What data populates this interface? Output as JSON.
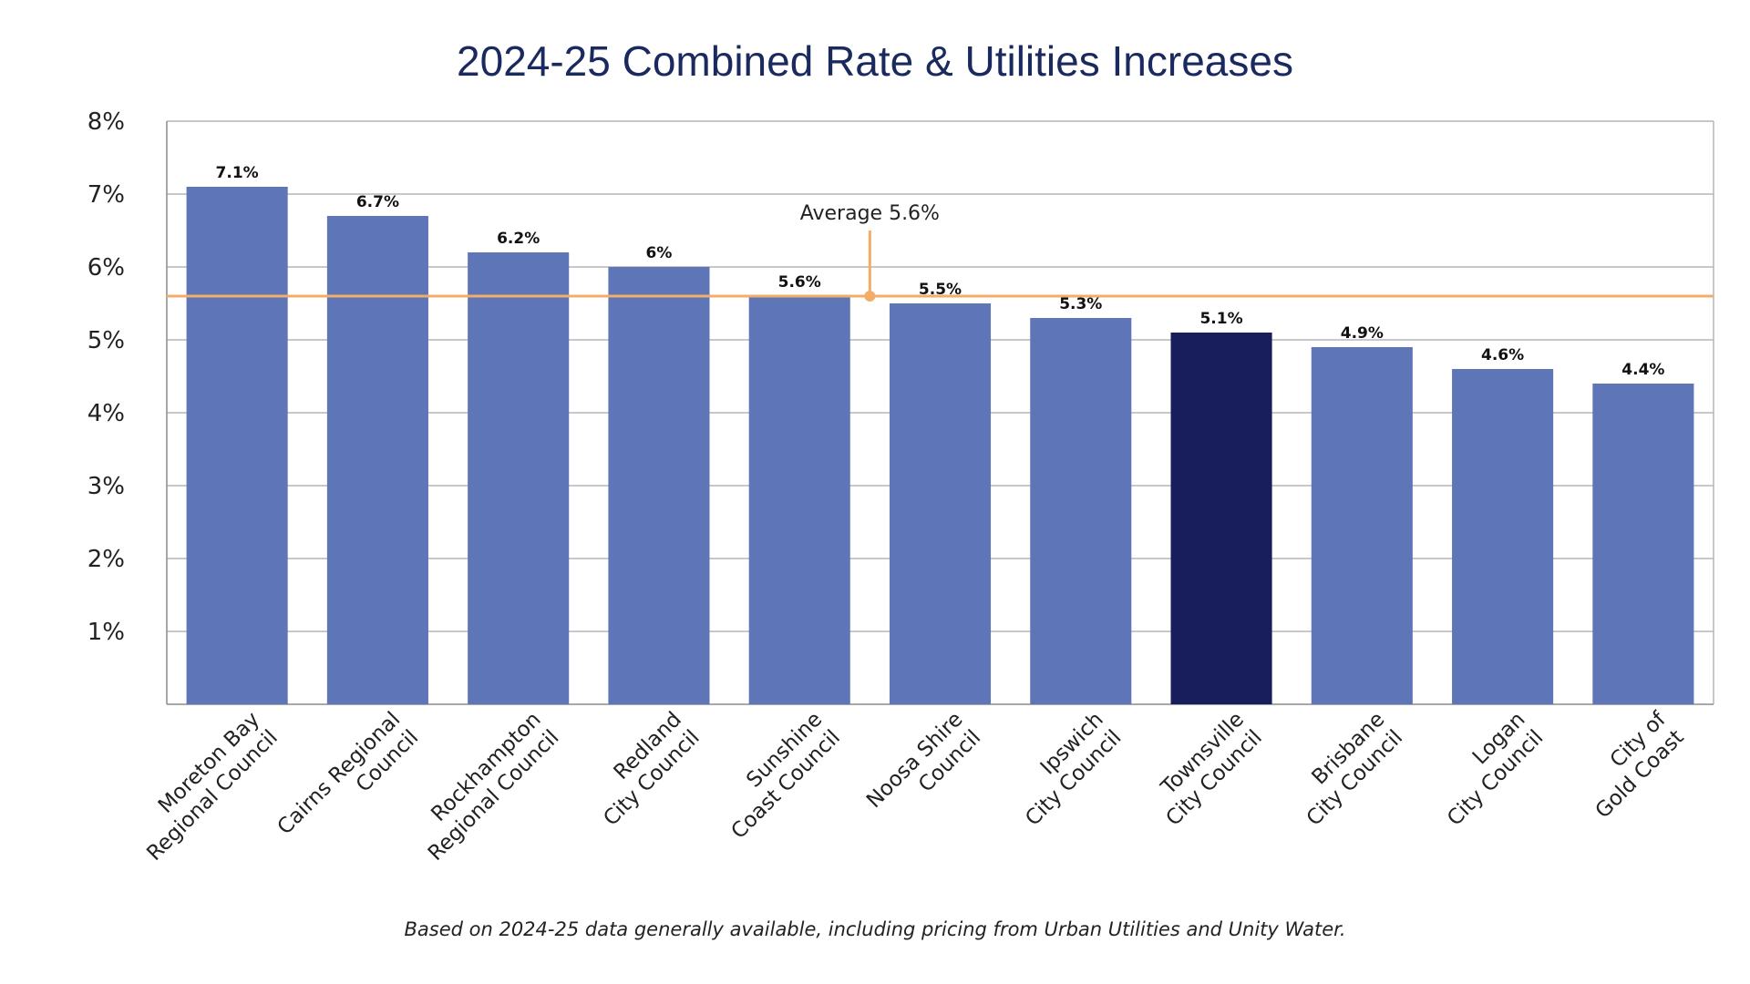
{
  "chart_data": {
    "type": "bar",
    "title": "2024-25 Combined Rate & Utilities Increases",
    "categories": [
      [
        "Moreton Bay",
        "Regional Council"
      ],
      [
        "Cairns Regional",
        "Council"
      ],
      [
        "Rockhampton",
        "Regional Council"
      ],
      [
        "Redland",
        "City Council"
      ],
      [
        "Sunshine",
        "Coast Council"
      ],
      [
        "Noosa Shire",
        "Council"
      ],
      [
        "Ipswich",
        "City Council"
      ],
      [
        "Townsville",
        "City Council"
      ],
      [
        "Brisbane",
        "City Council"
      ],
      [
        "Logan",
        "City Council"
      ],
      [
        "City of",
        "Gold Coast"
      ]
    ],
    "values": [
      7.1,
      6.7,
      6.2,
      6.0,
      5.6,
      5.5,
      5.3,
      5.1,
      4.9,
      4.6,
      4.4
    ],
    "value_labels": [
      "7.1%",
      "6.7%",
      "6.2%",
      "6%",
      "5.6%",
      "5.5%",
      "5.3%",
      "5.1%",
      "4.9%",
      "4.6%",
      "4.4%"
    ],
    "highlight_index": 7,
    "ylim": [
      0,
      8
    ],
    "y_ticks": [
      1,
      2,
      3,
      4,
      5,
      6,
      7,
      8
    ],
    "y_tick_labels": [
      "1%",
      "2%",
      "3%",
      "4%",
      "5%",
      "6%",
      "7%",
      "8%"
    ],
    "grid": true,
    "legend": "none",
    "average": {
      "value": 5.6,
      "label": "Average 5.6%"
    },
    "colors": {
      "bar": "#5e75b8",
      "highlight": "#171e5b",
      "average_line": "#f2ae69",
      "grid": "#b5b5b5",
      "title": "#1b2a5e"
    },
    "xlabel": "",
    "ylabel": ""
  },
  "footnote": "Based on 2024-25 data generally available, including pricing from Urban Utilities and Unity Water."
}
